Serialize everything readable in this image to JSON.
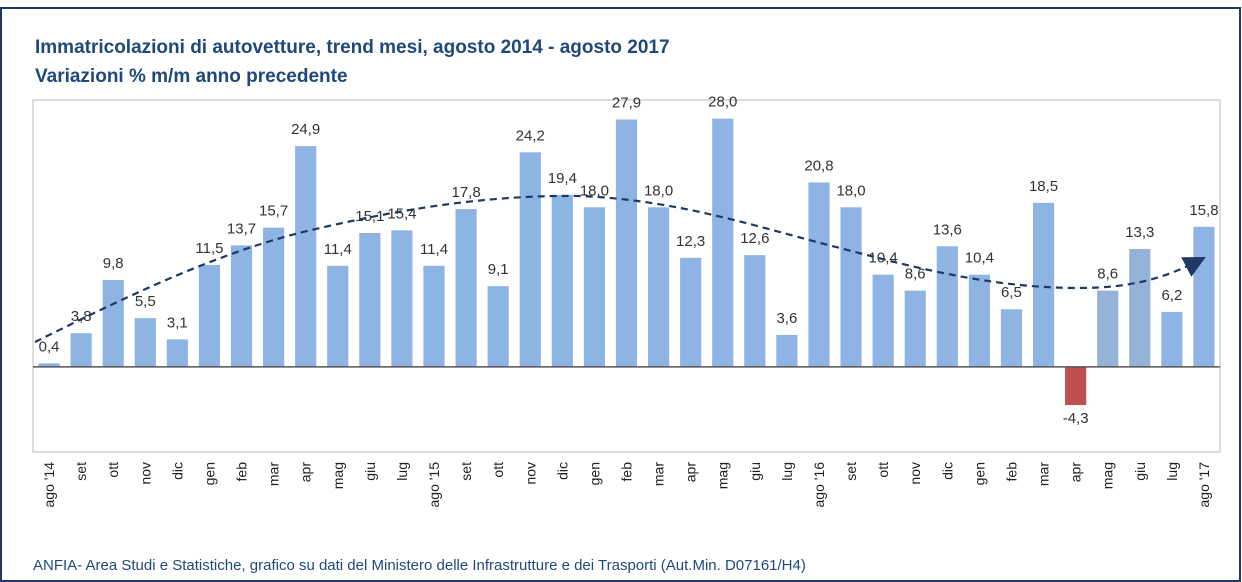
{
  "chart_data": {
    "type": "bar",
    "title": "Immatricolazioni  di autovetture, trend mesi, agosto 2014 - agosto 2017",
    "subtitle": "Variazioni % m/m anno precedente",
    "source": "ANFIA- Area Studi e Statistiche, grafico  su dati del Ministero delle Infrastrutture e dei Trasporti (Aut.Min. D07161/H4)",
    "categories": [
      "ago '14",
      "set",
      "ott",
      "nov",
      "dic",
      "gen",
      "feb",
      "mar",
      "apr",
      "mag",
      "giu",
      "lug",
      "ago '15",
      "set",
      "ott",
      "nov",
      "dic",
      "gen",
      "feb",
      "mar",
      "apr",
      "mag",
      "giu",
      "lug",
      "ago '16",
      "set",
      "ott",
      "nov",
      "dic",
      "gen",
      "feb",
      "mar",
      "apr",
      "mag",
      "giu",
      "lug",
      "ago '17"
    ],
    "values": [
      0.4,
      3.8,
      9.8,
      5.5,
      3.1,
      11.5,
      13.7,
      15.7,
      24.9,
      11.4,
      15.1,
      15.4,
      11.4,
      17.8,
      9.1,
      24.2,
      19.4,
      18.0,
      27.9,
      18.0,
      12.3,
      28.0,
      12.6,
      3.6,
      20.8,
      18.0,
      10.4,
      8.6,
      13.6,
      10.4,
      6.5,
      18.5,
      -4.3,
      8.6,
      13.3,
      6.2,
      15.8
    ],
    "value_labels": [
      "0,4",
      "3,8",
      "9,8",
      "5,5",
      "3,1",
      "11,5",
      "13,7",
      "15,7",
      "24,9",
      "11,4",
      "15,1",
      "15,4",
      "11,4",
      "17,8",
      "9,1",
      "24,2",
      "19,4",
      "18,0",
      "27,9",
      "18,0",
      "12,3",
      "28,0",
      "12,6",
      "3,6",
      "20,8",
      "18,0",
      "10,4",
      "8,6",
      "13,6",
      "10,4",
      "6,5",
      "18,5",
      "-4,3",
      "8,6",
      "13,3",
      "6,2",
      "15,8"
    ],
    "colors": [
      "#8db4e2",
      "#8db4e2",
      "#8db4e2",
      "#8db4e2",
      "#8db4e2",
      "#8db4e2",
      "#8db4e2",
      "#8db4e2",
      "#8db4e2",
      "#8db4e2",
      "#8db4e2",
      "#8db4e2",
      "#8db4e2",
      "#8db4e2",
      "#8db4e2",
      "#8db4e2",
      "#8db4e2",
      "#8db4e2",
      "#8db4e2",
      "#8db4e2",
      "#8db4e2",
      "#8db4e2",
      "#8db4e2",
      "#8db4e2",
      "#8db4e2",
      "#8db4e2",
      "#8db4e2",
      "#8db4e2",
      "#8db4e2",
      "#8db4e2",
      "#8db4e2",
      "#8db4e2",
      "#c0504d",
      "#95b3d7",
      "#95b3d7",
      "#8db4e2",
      "#8db4e2"
    ],
    "ylim": [
      -9.6,
      30.1
    ]
  }
}
